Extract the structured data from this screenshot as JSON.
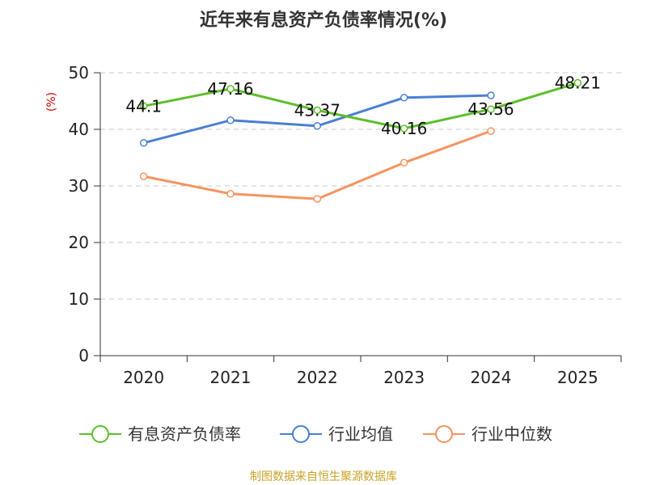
{
  "chart_data": {
    "type": "line",
    "title": "近年来有息资产负债率情况(%)",
    "ylabel": "(%)",
    "xlabel": "",
    "categories": [
      "2020",
      "2021",
      "2022",
      "2023",
      "2024",
      "2025"
    ],
    "ylim": [
      0,
      50
    ],
    "yticks": [
      "0",
      "10",
      "20",
      "30",
      "40",
      "50"
    ],
    "grid": true,
    "legend_position": "bottom",
    "series": [
      {
        "name": "有息资产负债率",
        "color": "#5cbf2a",
        "values": [
          44.1,
          47.16,
          43.37,
          40.16,
          43.56,
          48.21
        ],
        "labels": [
          "44.1",
          "47.16",
          "43.37",
          "40.16",
          "43.56",
          "48.21"
        ]
      },
      {
        "name": "行业均值",
        "color": "#4a7fd6",
        "values": [
          37.6,
          41.6,
          40.6,
          45.6,
          46.0,
          null
        ],
        "labels": []
      },
      {
        "name": "行业中位数",
        "color": "#f5935f",
        "values": [
          31.7,
          28.6,
          27.7,
          34.1,
          39.7,
          null
        ],
        "labels": []
      }
    ]
  },
  "source": "制图数据来自恒生聚源数据库"
}
